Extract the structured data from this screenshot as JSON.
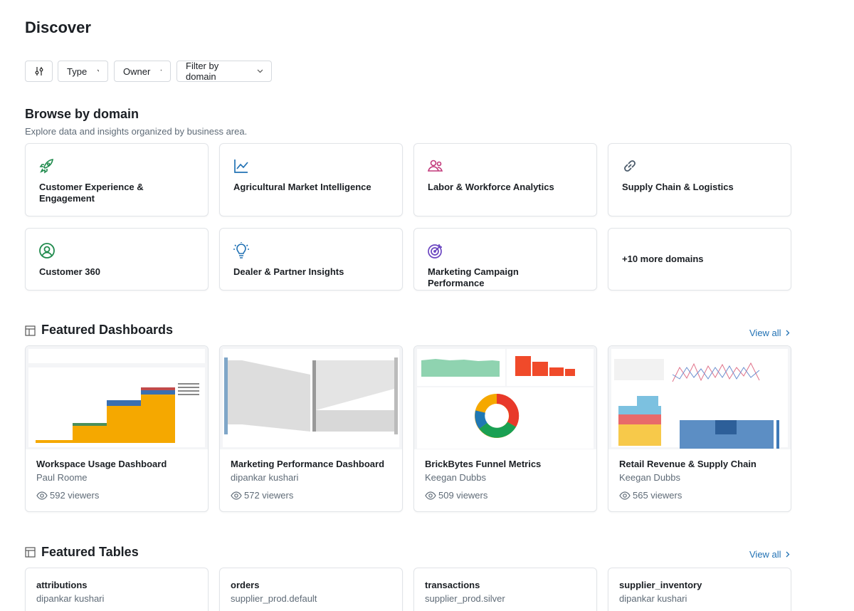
{
  "header": {
    "title": "Discover"
  },
  "filters": [
    "Type",
    "Owner",
    "Filter by domain"
  ],
  "browse": {
    "title": "Browse by domain",
    "subtitle": "Explore data and insights organized by business area.",
    "domains": [
      "Customer Experience & Engagement",
      "Agricultural Market Intelligence",
      "Labor & Workforce Analytics",
      "Supply Chain & Logistics",
      "Customer 360",
      "Dealer & Partner Insights",
      "Marketing Campaign Performance"
    ],
    "more": "+10 more domains"
  },
  "dashboards": {
    "title": "Featured Dashboards",
    "view_all": "View all",
    "items": [
      {
        "name": "Workspace Usage Dashboard",
        "owner": "Paul Roome",
        "viewers": "592 viewers"
      },
      {
        "name": "Marketing Performance Dashboard",
        "owner": "dipankar kushari",
        "viewers": "572 viewers"
      },
      {
        "name": "BrickBytes Funnel Metrics",
        "owner": "Keegan Dubbs",
        "viewers": "509 viewers"
      },
      {
        "name": "Retail Revenue & Supply Chain",
        "owner": "Keegan Dubbs",
        "viewers": "565 viewers"
      }
    ]
  },
  "tables": {
    "title": "Featured Tables",
    "view_all": "View all",
    "items": [
      {
        "name": "attributions",
        "owner": "dipankar kushari"
      },
      {
        "name": "orders",
        "owner": "supplier_prod.default"
      },
      {
        "name": "transactions",
        "owner": "supplier_prod.silver"
      },
      {
        "name": "supplier_inventory",
        "owner": "dipankar kushari"
      }
    ]
  }
}
